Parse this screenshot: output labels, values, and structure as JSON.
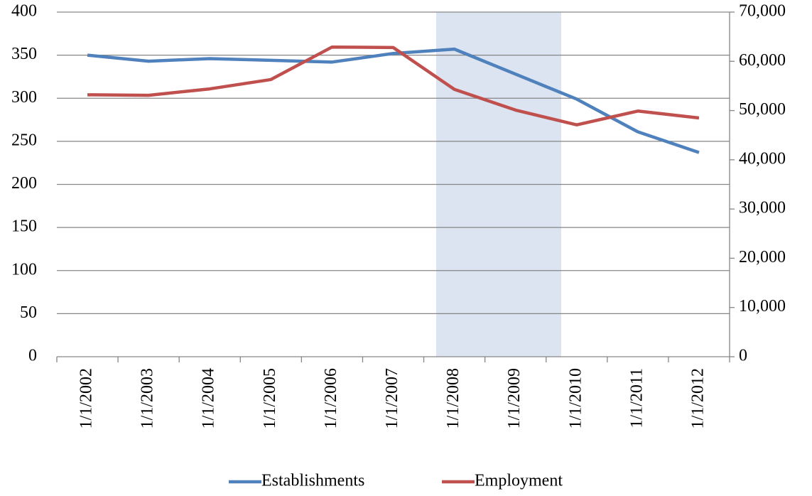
{
  "chart_data": {
    "type": "line",
    "categories": [
      "1/1/2002",
      "1/1/2003",
      "1/1/2004",
      "1/1/2005",
      "1/1/2006",
      "1/1/2007",
      "1/1/2008",
      "1/1/2009",
      "1/1/2010",
      "1/1/2011",
      "1/1/2012"
    ],
    "series": [
      {
        "name": "Establishments",
        "color": "#4f81bd",
        "values": [
          350,
          343,
          346,
          344,
          342,
          352,
          357,
          328,
          299,
          261,
          237
        ]
      },
      {
        "name": "Employment",
        "color": "#c0504d",
        "axis": "y2",
        "values": [
          53200,
          53100,
          54400,
          56300,
          62900,
          62800,
          54300,
          50100,
          47100,
          49900,
          48500
        ]
      }
    ],
    "ylim": [
      0,
      400
    ],
    "yticks": [
      0,
      50,
      100,
      150,
      200,
      250,
      300,
      350,
      400
    ],
    "y2lim": [
      0,
      70000
    ],
    "y2ticks": [
      0,
      {
        "value": 10000,
        "label": "10,000"
      },
      {
        "value": 20000,
        "label": "20,000"
      },
      {
        "value": 30000,
        "label": "30,000"
      },
      {
        "value": 40000,
        "label": "40,000"
      },
      {
        "value": 50000,
        "label": "50,000"
      },
      {
        "value": 60000,
        "label": "60,000"
      },
      {
        "value": 70000,
        "label": "70,000"
      }
    ],
    "grid": true,
    "legend": "bottom"
  }
}
